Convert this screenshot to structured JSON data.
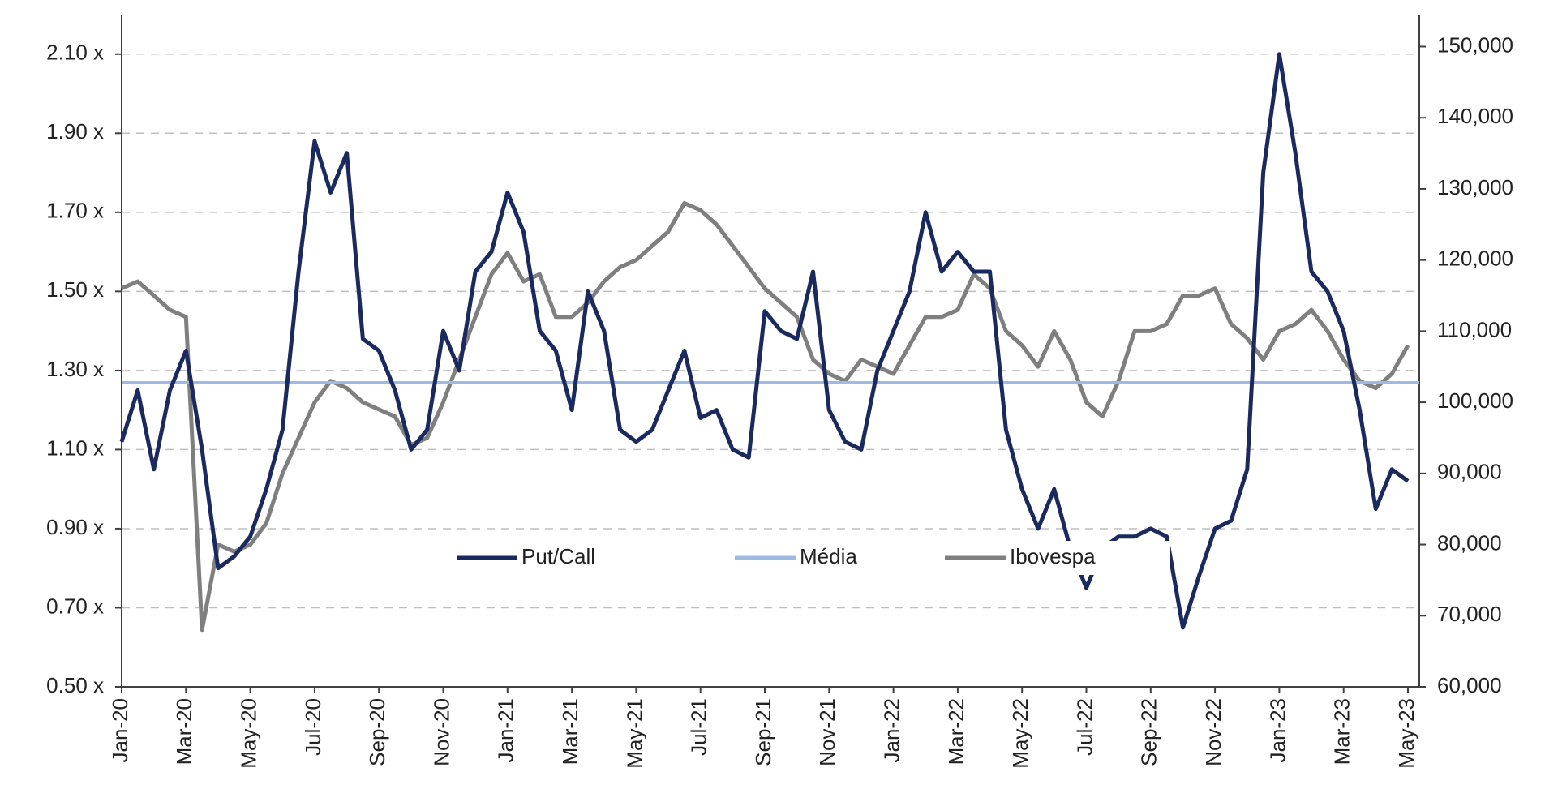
{
  "chart_data": {
    "type": "line",
    "categories": [
      "Jan-20",
      null,
      null,
      null,
      "Mar-20",
      null,
      null,
      null,
      "May-20",
      null,
      null,
      null,
      "Jul-20",
      null,
      null,
      null,
      "Sep-20",
      null,
      null,
      null,
      "Nov-20",
      null,
      null,
      null,
      "Jan-21",
      null,
      null,
      null,
      "Mar-21",
      null,
      null,
      null,
      "May-21",
      null,
      null,
      null,
      "Jul-21",
      null,
      null,
      null,
      "Sep-21",
      null,
      null,
      null,
      "Nov-21",
      null,
      null,
      null,
      "Jan-22",
      null,
      null,
      null,
      "Mar-22",
      null,
      null,
      null,
      "May-22",
      null,
      null,
      null,
      "Jul-22",
      null,
      null,
      null,
      "Sep-22",
      null,
      null,
      null,
      "Nov-22",
      null,
      null,
      null,
      "Jan-23",
      null,
      null,
      null,
      "Mar-23",
      null,
      null,
      null,
      "May-23"
    ],
    "series": [
      {
        "name": "Put/Call",
        "color": "#1b2a5e",
        "values": [
          1.12,
          1.25,
          1.05,
          1.25,
          1.35,
          1.1,
          0.8,
          0.83,
          0.88,
          1.0,
          1.15,
          1.55,
          1.88,
          1.75,
          1.85,
          1.38,
          1.35,
          1.25,
          1.1,
          1.15,
          1.4,
          1.3,
          1.55,
          1.6,
          1.75,
          1.65,
          1.4,
          1.35,
          1.2,
          1.5,
          1.4,
          1.15,
          1.12,
          1.15,
          1.25,
          1.35,
          1.18,
          1.2,
          1.1,
          1.08,
          1.45,
          1.4,
          1.38,
          1.55,
          1.2,
          1.12,
          1.1,
          1.3,
          1.4,
          1.5,
          1.7,
          1.55,
          1.6,
          1.55,
          1.55,
          1.15,
          1.0,
          0.9,
          1.0,
          0.85,
          0.75,
          0.85,
          0.88,
          0.88,
          0.9,
          0.88,
          0.65,
          0.78,
          0.9,
          0.92,
          1.05,
          1.8,
          2.1,
          1.85,
          1.55,
          1.5,
          1.4,
          1.2,
          0.95,
          1.05,
          1.02
        ]
      },
      {
        "name": "Média",
        "color": "#9dbbe0",
        "value": 1.27
      },
      {
        "name": "Ibovespa",
        "color": "#7f7f7f",
        "axis": "y2",
        "values": [
          116000,
          117000,
          115000,
          113000,
          112000,
          68000,
          80000,
          79000,
          80000,
          83000,
          90000,
          95000,
          100000,
          103000,
          102000,
          100000,
          99000,
          98000,
          94000,
          95000,
          100000,
          106000,
          112000,
          118000,
          121000,
          117000,
          118000,
          112000,
          112000,
          114000,
          117000,
          119000,
          120000,
          122000,
          124000,
          128000,
          127000,
          125000,
          122000,
          119000,
          116000,
          114000,
          112000,
          106000,
          104000,
          103000,
          106000,
          105000,
          104000,
          108000,
          112000,
          112000,
          113000,
          118000,
          116000,
          110000,
          108000,
          105000,
          110000,
          106000,
          100000,
          98000,
          103000,
          110000,
          110000,
          111000,
          115000,
          115000,
          116000,
          111000,
          109000,
          106000,
          110000,
          111000,
          113000,
          110000,
          106000,
          103000,
          102000,
          104000,
          108000
        ]
      }
    ],
    "ylim": [
      0.5,
      2.2
    ],
    "yticks": [
      {
        "value": 0.5,
        "label": "0.50 x"
      },
      {
        "value": 0.7,
        "label": "0.70 x"
      },
      {
        "value": 0.9,
        "label": "0.90 x"
      },
      {
        "value": 1.1,
        "label": "1.10 x"
      },
      {
        "value": 1.3,
        "label": "1.30 x"
      },
      {
        "value": 1.5,
        "label": "1.50 x"
      },
      {
        "value": 1.7,
        "label": "1.70 x"
      },
      {
        "value": 1.9,
        "label": "1.90 x"
      },
      {
        "value": 2.1,
        "label": "2.10 x"
      }
    ],
    "y2lim": [
      60000,
      154500
    ],
    "y2ticks": [
      {
        "value": 60000,
        "label": "60,000"
      },
      {
        "value": 70000,
        "label": "70,000"
      },
      {
        "value": 80000,
        "label": "80,000"
      },
      {
        "value": 90000,
        "label": "90,000"
      },
      {
        "value": 100000,
        "label": "100,000"
      },
      {
        "value": 110000,
        "label": "110,000"
      },
      {
        "value": 120000,
        "label": "120,000"
      },
      {
        "value": 130000,
        "label": "130,000"
      },
      {
        "value": 140000,
        "label": "140,000"
      },
      {
        "value": 150000,
        "label": "150,000"
      }
    ],
    "grid": true,
    "legend": "center"
  }
}
